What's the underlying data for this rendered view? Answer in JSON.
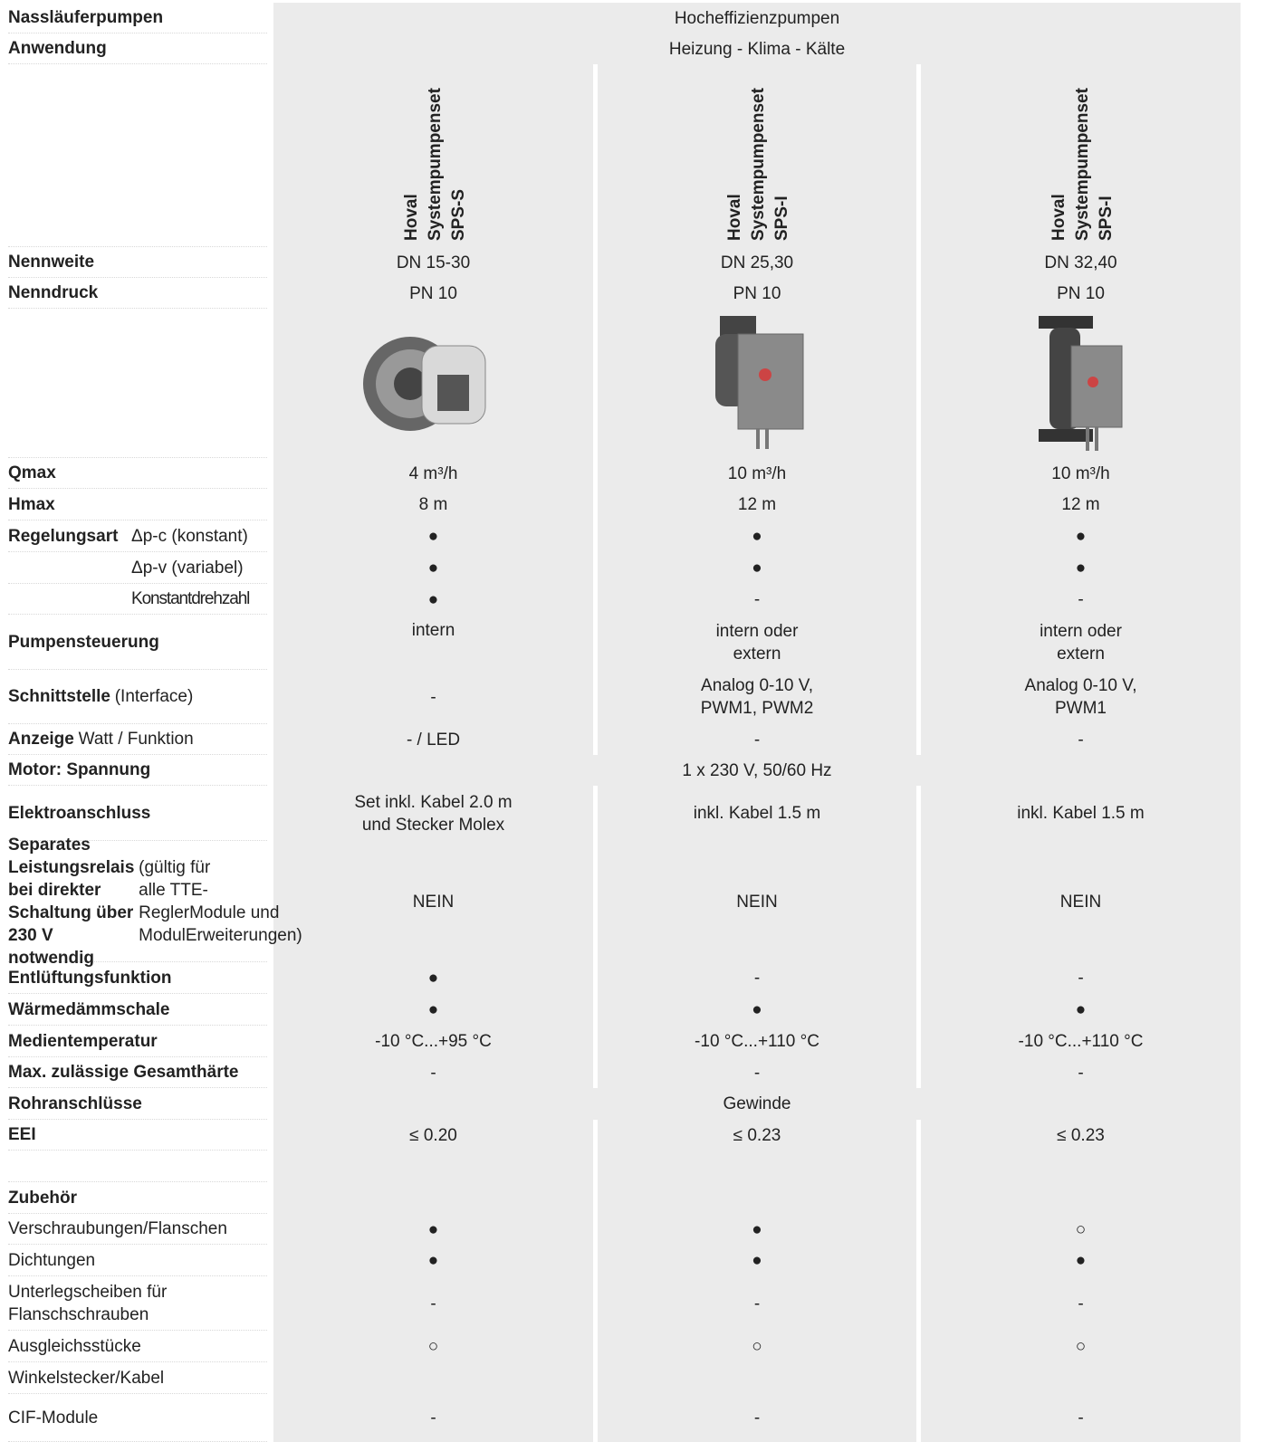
{
  "rows": [
    {
      "label": {
        "bold": "Nassläuferpumpen"
      },
      "span": "Hocheffizienzpumpen"
    },
    {
      "label": {
        "bold": "Anwendung"
      },
      "span": "Heizung - Klima - Kälte"
    },
    {
      "label": {
        "bold": "Nennweite"
      },
      "cells": [
        "DN 15-30",
        "DN 25,30",
        "DN 32,40"
      ]
    },
    {
      "label": {
        "bold": "Nenndruck"
      },
      "cells": [
        "PN 10",
        "PN 10",
        "PN 10"
      ]
    },
    {
      "label": {
        "bold": "Qmax"
      },
      "cells": [
        "4 m³/h",
        "10 m³/h",
        "10 m³/h"
      ]
    },
    {
      "label": {
        "bold": "Hmax"
      },
      "cells": [
        "8 m",
        "12 m",
        "12 m"
      ]
    },
    {
      "label": {
        "bold": "Regelungsart",
        "sub": "Δp-c (konstant)"
      },
      "cells": [
        "●",
        "●",
        "●"
      ]
    },
    {
      "label": {
        "sub": "Δp-v (variabel)"
      },
      "cells": [
        "●",
        "●",
        "●"
      ]
    },
    {
      "label": {
        "sub": "Konstantdrehzahl"
      },
      "cells": [
        "●",
        "-",
        "-"
      ]
    },
    {
      "label": {
        "bold": "Pumpensteuerung"
      },
      "cells": [
        "intern",
        "intern oder\nextern",
        "intern oder\nextern"
      ]
    },
    {
      "label": {
        "bold": "Schnittstelle",
        "text": "(Interface)"
      },
      "cells": [
        "-",
        "Analog 0-10 V,\nPWM1, PWM2",
        "Analog 0-10 V,\nPWM1"
      ]
    },
    {
      "label": {
        "bold": "Anzeige",
        "text": "Watt / Funktion"
      },
      "cells": [
        "- / LED",
        "-",
        "-"
      ]
    },
    {
      "label": {
        "bold": "Motor: Spannung"
      },
      "span": "1 x 230 V, 50/60 Hz"
    },
    {
      "label": {
        "bold": "Elektroanschluss"
      },
      "cells": [
        "Set inkl. Kabel 2.0 m\nund Stecker Molex",
        "inkl. Kabel 1.5 m",
        "inkl. Kabel 1.5 m"
      ]
    },
    {
      "label": {
        "bold": "Separates Leistungsrelais\nbei direkter Schaltung über\n230 V notwendig",
        "text": "(gültig für\nalle TTE-ReglerModule und\nModulErweiterungen)"
      },
      "cells": [
        "NEIN",
        "NEIN",
        "NEIN"
      ]
    },
    {
      "label": {
        "bold": "Entlüftungsfunktion"
      },
      "cells": [
        "●",
        "-",
        "-"
      ]
    },
    {
      "label": {
        "bold": "Wärmedämmschale"
      },
      "cells": [
        "●",
        "●",
        "●"
      ]
    },
    {
      "label": {
        "bold": "Medientemperatur"
      },
      "cells": [
        "-10 °C...+95 °C",
        "-10 °C...+110 °C",
        "-10 °C...+110 °C"
      ]
    },
    {
      "label": {
        "bold": "Max. zulässige Gesamthärte"
      },
      "cells": [
        "-",
        "-",
        "-"
      ]
    },
    {
      "label": {
        "bold": "Rohranschlüsse"
      },
      "span": "Gewinde"
    },
    {
      "label": {
        "bold": "EEI"
      },
      "cells": [
        "≤ 0.20",
        "≤ 0.23",
        "≤ 0.23"
      ]
    },
    {
      "label": {
        "bold": "Zubehör"
      }
    },
    {
      "label": {
        "text": "Verschraubungen/Flanschen"
      },
      "cells": [
        "●",
        "●",
        "○"
      ]
    },
    {
      "label": {
        "text": "Dichtungen"
      },
      "cells": [
        "●",
        "●",
        "●"
      ]
    },
    {
      "label": {
        "text": "Unterlegscheiben für\nFlanschschrauben"
      },
      "cells": [
        "-",
        "-",
        "-"
      ]
    },
    {
      "label": {
        "text": "Ausgleichsstücke"
      },
      "cells": [
        "○",
        "○",
        "○"
      ]
    },
    {
      "label": {
        "text": "Winkelstecker/Kabel"
      }
    },
    {
      "label": {
        "text": "CIF-Module"
      },
      "cells": [
        "-",
        "-",
        "-"
      ]
    }
  ],
  "products": [
    {
      "brand": "Hoval",
      "name": "Systempumpenset",
      "model": "SPS-S"
    },
    {
      "brand": "Hoval",
      "name": "Systempumpenset",
      "model": "SPS-I"
    },
    {
      "brand": "Hoval",
      "name": "Systempumpenset",
      "model": "SPS-I"
    }
  ]
}
